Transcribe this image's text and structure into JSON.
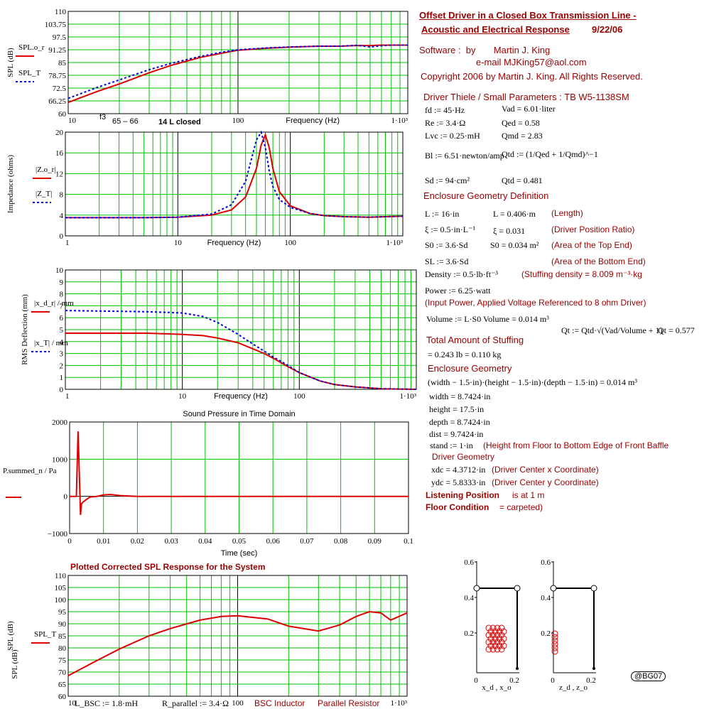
{
  "colors": {
    "grid": "#00c000",
    "red": "#dd0000",
    "blue": "#0000dd",
    "header": "#990000",
    "text": "#000000"
  },
  "chart_data": [
    {
      "type": "line",
      "ylabel": "SPL (dB)",
      "legend": [
        "SPL.o_r",
        "SPL_T"
      ],
      "xlim": [
        10,
        1000
      ],
      "xscale": "log",
      "ylim": [
        60,
        110
      ],
      "yticks": [
        "110",
        "103.75",
        "97.5",
        "91.25",
        "85",
        "78.75",
        "72.5",
        "66.25",
        "60"
      ],
      "xticks": [
        "10",
        "100",
        "1·10^3"
      ],
      "xlabel": "Frequency (Hz)",
      "note_f3": "f3",
      "note_range": "65 – 66",
      "note_box": "14 L closed",
      "x": [
        10,
        15,
        20,
        30,
        40,
        60,
        80,
        100,
        150,
        200,
        300,
        400,
        500,
        600,
        700,
        800,
        1000
      ],
      "series": [
        {
          "name": "SPL.o_r",
          "color": "red",
          "values": [
            65.5,
            71,
            74.5,
            80,
            83.5,
            87.5,
            89.5,
            91,
            92,
            92.5,
            93,
            93,
            93.3,
            93.3,
            93.5,
            93.5,
            93.5
          ]
        },
        {
          "name": "SPL_T",
          "color": "blue",
          "values": [
            67.5,
            73,
            76.5,
            81.5,
            84.5,
            88,
            90,
            91.2,
            92.2,
            92.6,
            93,
            93,
            93.4,
            92.6,
            93.2,
            93.5,
            93.5
          ]
        }
      ]
    },
    {
      "type": "line",
      "ylabel": "Impedance (ohms)",
      "legend": [
        "|Z.o_r|",
        "|Z_T|"
      ],
      "xlim": [
        1,
        1000
      ],
      "xscale": "log",
      "ylim": [
        0,
        20
      ],
      "yticks": [
        "20",
        "16",
        "12",
        "8",
        "4",
        "0"
      ],
      "xticks": [
        "1",
        "10",
        "100",
        "1·10^3"
      ],
      "xlabel": "Frequency (Hz)",
      "x": [
        1,
        5,
        10,
        20,
        30,
        40,
        50,
        55,
        60,
        65,
        70,
        80,
        100,
        150,
        200,
        300,
        500,
        1000
      ],
      "series": [
        {
          "name": "|Z.o_r|",
          "color": "red",
          "values": [
            3.5,
            3.5,
            3.6,
            4.0,
            5.0,
            7.5,
            13,
            17.5,
            19.5,
            17,
            13,
            8.5,
            5.8,
            4.3,
            3.9,
            3.7,
            3.6,
            3.8
          ]
        },
        {
          "name": "|Z_T|",
          "color": "blue",
          "values": [
            3.5,
            3.5,
            3.6,
            4.2,
            6,
            10.5,
            18.5,
            20,
            17,
            12.5,
            9.5,
            7,
            5.5,
            4.3,
            3.9,
            3.7,
            3.6,
            3.8
          ]
        }
      ]
    },
    {
      "type": "line",
      "ylabel": "RMS Deflection (mm)",
      "legend": [
        "|x_d_r| / mm",
        "|x_T| / mm"
      ],
      "xlim": [
        1,
        1000
      ],
      "xscale": "log",
      "ylim": [
        0,
        10
      ],
      "yticks": [
        "10",
        "9",
        "8",
        "7",
        "6",
        "5",
        "4",
        "3",
        "2",
        "1",
        "0"
      ],
      "xticks": [
        "1",
        "10",
        "100",
        "1·10^3"
      ],
      "xlabel": "Frequency (Hz)",
      "x": [
        1,
        5,
        10,
        15,
        20,
        30,
        40,
        50,
        60,
        80,
        100,
        150,
        200,
        300,
        500,
        1000
      ],
      "series": [
        {
          "name": "|x_d_r|",
          "color": "red",
          "values": [
            4.7,
            4.7,
            4.6,
            4.5,
            4.3,
            3.9,
            3.4,
            3.0,
            2.6,
            1.9,
            1.4,
            0.7,
            0.4,
            0.2,
            0.05,
            0.0
          ]
        },
        {
          "name": "|x_T|",
          "color": "blue",
          "values": [
            6.6,
            6.5,
            6.4,
            6.1,
            5.6,
            4.6,
            3.8,
            3.2,
            2.7,
            2.0,
            1.4,
            0.7,
            0.4,
            0.2,
            0.05,
            0.0
          ]
        }
      ]
    },
    {
      "type": "line",
      "title": "Sound Pressure in Time Domain",
      "ylabel": "P.summed_n / Pa",
      "xlim": [
        0,
        0.1
      ],
      "ylim": [
        -1000,
        2000
      ],
      "yticks": [
        "2000",
        "1000",
        "0",
        "−1000"
      ],
      "xticks": [
        "0",
        "0.01",
        "0.02",
        "0.03",
        "0.04",
        "0.05",
        "0.06",
        "0.07",
        "0.08",
        "0.09",
        "0.1"
      ],
      "xlabel": "Time (sec)",
      "x": [
        0,
        0.0015,
        0.002,
        0.0025,
        0.003,
        0.0032,
        0.0035,
        0.004,
        0.005,
        0.006,
        0.008,
        0.01,
        0.012,
        0.015,
        0.02,
        0.1
      ],
      "series": [
        {
          "name": "P.summed_n",
          "color": "red",
          "values": [
            0,
            0,
            0,
            1750,
            200,
            -500,
            -200,
            -150,
            -80,
            -20,
            0,
            40,
            50,
            20,
            0,
            0
          ]
        }
      ]
    },
    {
      "type": "line",
      "title": "Plotted Corrected SPL Response for the System",
      "ylabel": "SPL (dB)",
      "legend": [
        "SPL_T"
      ],
      "xlim": [
        10,
        1000
      ],
      "xscale": "log",
      "ylim": [
        60,
        110
      ],
      "yticks": [
        "110",
        "105",
        "100",
        "95",
        "90",
        "85",
        "80",
        "75",
        "70",
        "65",
        "60"
      ],
      "xticks": [
        "10",
        "100",
        "1·10^3"
      ],
      "x": [
        10,
        15,
        20,
        30,
        40,
        60,
        80,
        100,
        150,
        200,
        300,
        400,
        500,
        600,
        700,
        800,
        1000
      ],
      "series": [
        {
          "name": "SPL_T",
          "color": "red",
          "values": [
            68.5,
            75,
            79.5,
            85,
            88,
            91.5,
            93,
            93.3,
            92,
            89,
            87,
            89.5,
            93,
            95,
            94.5,
            91.5,
            94.5
          ]
        }
      ]
    }
  ],
  "bottom_labels": {
    "lbsc": "L_BSC := 1.8·mH",
    "rpar": "R_parallel := 3.4·Ω",
    "bsc": "BSC Inductor",
    "pr": "Parallel Resistor"
  },
  "doc": {
    "title1": "Offset Driver in a Closed Box Transmission Line -",
    "title2": "Acoustic and Electrical Response",
    "date": "9/22/06",
    "software": "Software :  by       Martin J. King",
    "email": "e-mail  MJKing57@aol.com",
    "copyright": "Copyright 2006 by Martin J. King. All Rights Reserved.",
    "ts_head": "Driver Thiele / Small Parameters : TB W5-1138SM",
    "fd": "fd := 45·Hz",
    "vad": "Vad = 6.01·liter",
    "re": "Re := 3.4·Ω",
    "qed": "Qed = 0.58",
    "lvc": "Lvc := 0.25·mH",
    "qmd": "Qmd = 2.83",
    "bl": "Bl := 6.51·newton/amp",
    "qtd": "Qtd := (1/Qed + 1/Qmd)^−1",
    "sd": "Sd := 94·cm²",
    "qtdv": "Qtd = 0.481",
    "geo_head": "Enclosure Geometry Definition",
    "L": "L := 16·in",
    "Lm": "L = 0.406·m",
    "Lt": "(Length)",
    "xi": "ξ := 0.5·in·L⁻¹",
    "xiv": "ξ = 0.031",
    "xit": "(Driver Position Ratio)",
    "s0": "S0 := 3.6·Sd",
    "s0v": "S0 = 0.034 m²",
    "s0t": "(Area of the Top End)",
    "sl": "SL := 3.6·Sd",
    "slt": "(Area of the Bottom End)",
    "dens": "Density := 0.5·lb·ft⁻³",
    "denst": "(Stuffing density    = 8.009 m⁻³·kg",
    "power": "Power := 6.25·watt",
    "powert": "(Input Power, Applied Voltage Referenced to 8 ohm Driver)",
    "vol": "Volume := L·S0   Volume = 0.014 m³",
    "qt": "Qt := Qtd·√(Vad/Volume + 1)",
    "qtv": "Qt = 0.577",
    "stuff_head": "Total Amount of Stuffing",
    "stuff": "= 0.243 lb   = 0.110 kg",
    "encl_head": "Enclosure Geometry",
    "eq": "(width − 1.5·in)·(height − 1.5·in)·(depth − 1.5·in) = 0.014 m³",
    "width": "width = 8.7424·in",
    "height": "height = 17.5·in",
    "depth": "depth = 8.7424·in",
    "dist": "dist = 9.7424·in",
    "stand": "stand := 1·in",
    "standt": "(Height from Floor to Bottom Edge of Front Baffle",
    "drv_head": "Driver Geometry",
    "xdc": "xdc = 4.3712·in",
    "xdct": "(Driver Center x Coordinate)",
    "ydc": "ydc = 5.8333·in",
    "ydct": "(Driver Center y Coordinate)",
    "lp": "Listening Position",
    "lpv": "is at 1 m",
    "fc": "Floor Condition",
    "fcv": "= carpeted)"
  },
  "geom": {
    "yticks": [
      "0.6",
      "0.4",
      "0.2"
    ],
    "x0": "0",
    "x1": "0.2",
    "xlabel1": "x_d , x_o",
    "xlabel2": "z_d , z_o",
    "badge": "@BG07"
  }
}
